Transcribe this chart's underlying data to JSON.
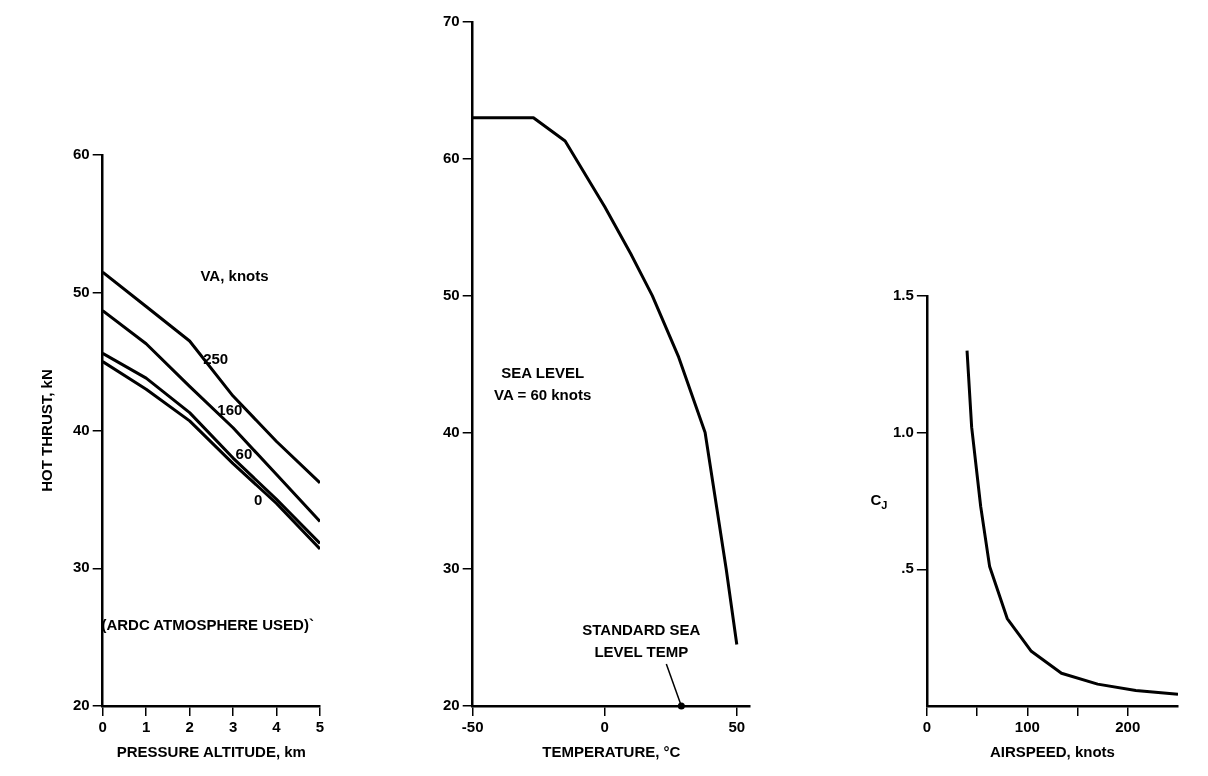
{
  "chart_data": [
    {
      "type": "line",
      "xlabel": "PRESSURE ALTITUDE, km",
      "ylabel": "HOT THRUST, kN",
      "legend_title": "VA, knots",
      "x": [
        0,
        1,
        2,
        3,
        4,
        5
      ],
      "xlim": [
        0,
        5
      ],
      "xticks": [
        0,
        1,
        2,
        3,
        4,
        5
      ],
      "ylim": [
        20,
        60
      ],
      "yticks": [
        20,
        30,
        40,
        50,
        60
      ],
      "grid": false,
      "legend": false,
      "annotations": [
        "(ARDC ATMOSPHERE USED)`"
      ],
      "series": [
        {
          "name": "250",
          "color": "#000000",
          "values": [
            51.5,
            49.0,
            46.5,
            42.5,
            39.2,
            36.2
          ]
        },
        {
          "name": "160",
          "color": "#000000",
          "values": [
            48.7,
            46.3,
            43.2,
            40.2,
            36.8,
            33.4
          ]
        },
        {
          "name": "60",
          "color": "#000000",
          "values": [
            45.6,
            43.8,
            41.3,
            38.0,
            35.0,
            31.8
          ]
        },
        {
          "name": "0",
          "color": "#000000",
          "values": [
            45.0,
            43.0,
            40.7,
            37.6,
            34.7,
            31.4
          ]
        }
      ]
    },
    {
      "type": "line",
      "xlabel": "TEMPERATURE, °C",
      "x": [
        -50,
        -27,
        -15,
        0,
        10,
        18,
        28,
        38,
        46,
        50
      ],
      "xlim": [
        -50,
        55
      ],
      "xticks": [
        -50,
        0,
        50
      ],
      "ylim": [
        20,
        70
      ],
      "yticks": [
        20,
        30,
        40,
        50,
        60,
        70
      ],
      "grid": false,
      "legend": false,
      "annotations": [
        "SEA LEVEL\nVA = 60 knots",
        {
          "text": "STANDARD SEA\nLEVEL TEMP",
          "x": 29,
          "y": 20
        }
      ],
      "series": [
        {
          "color": "#000000",
          "values": [
            63,
            63,
            61.3,
            56.5,
            53,
            50,
            45.5,
            40,
            30,
            24.5
          ]
        }
      ]
    },
    {
      "type": "line",
      "xlabel": "AIRSPEED, knots",
      "ylabel": "C$_{J}$",
      "x": [
        40,
        44.6,
        53.6,
        62.5,
        80,
        104,
        134,
        170,
        208,
        250
      ],
      "xlim": [
        0,
        250
      ],
      "xticks": [
        0,
        {
          "value": 50,
          "label": null
        },
        100,
        {
          "value": 150,
          "label": null
        },
        200
      ],
      "ylim": [
        0,
        1.5
      ],
      "yticks": [
        {
          "value": 0.5,
          "label": ".5"
        },
        {
          "value": 1.0,
          "label": "1.0"
        },
        {
          "value": 1.5,
          "label": "1.5"
        }
      ],
      "grid": false,
      "legend": false,
      "series": [
        {
          "color": "#000000",
          "values": [
            1.3,
            1.02,
            0.73,
            0.51,
            0.32,
            0.2,
            0.12,
            0.08,
            0.057,
            0.043
          ]
        }
      ]
    }
  ]
}
